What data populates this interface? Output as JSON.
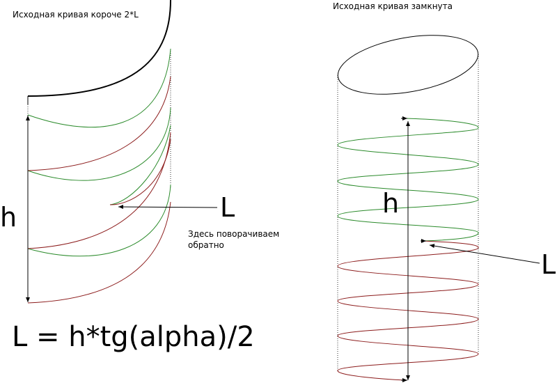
{
  "left_panel": {
    "caption": "Исходная кривая короче 2*L",
    "height_label": "h",
    "length_label": "L",
    "note_line1": "Здесь поворачиваем",
    "note_line2": "обратно",
    "formula": "L = h*tg(alpha)/2"
  },
  "right_panel": {
    "caption": "Исходная кривая  замкнута",
    "height_label": "h",
    "length_label": "L"
  },
  "colors": {
    "outline": "#000000",
    "forward_path": "#2a8a2a",
    "return_path": "#8b1a1a",
    "guide": "#000000"
  }
}
